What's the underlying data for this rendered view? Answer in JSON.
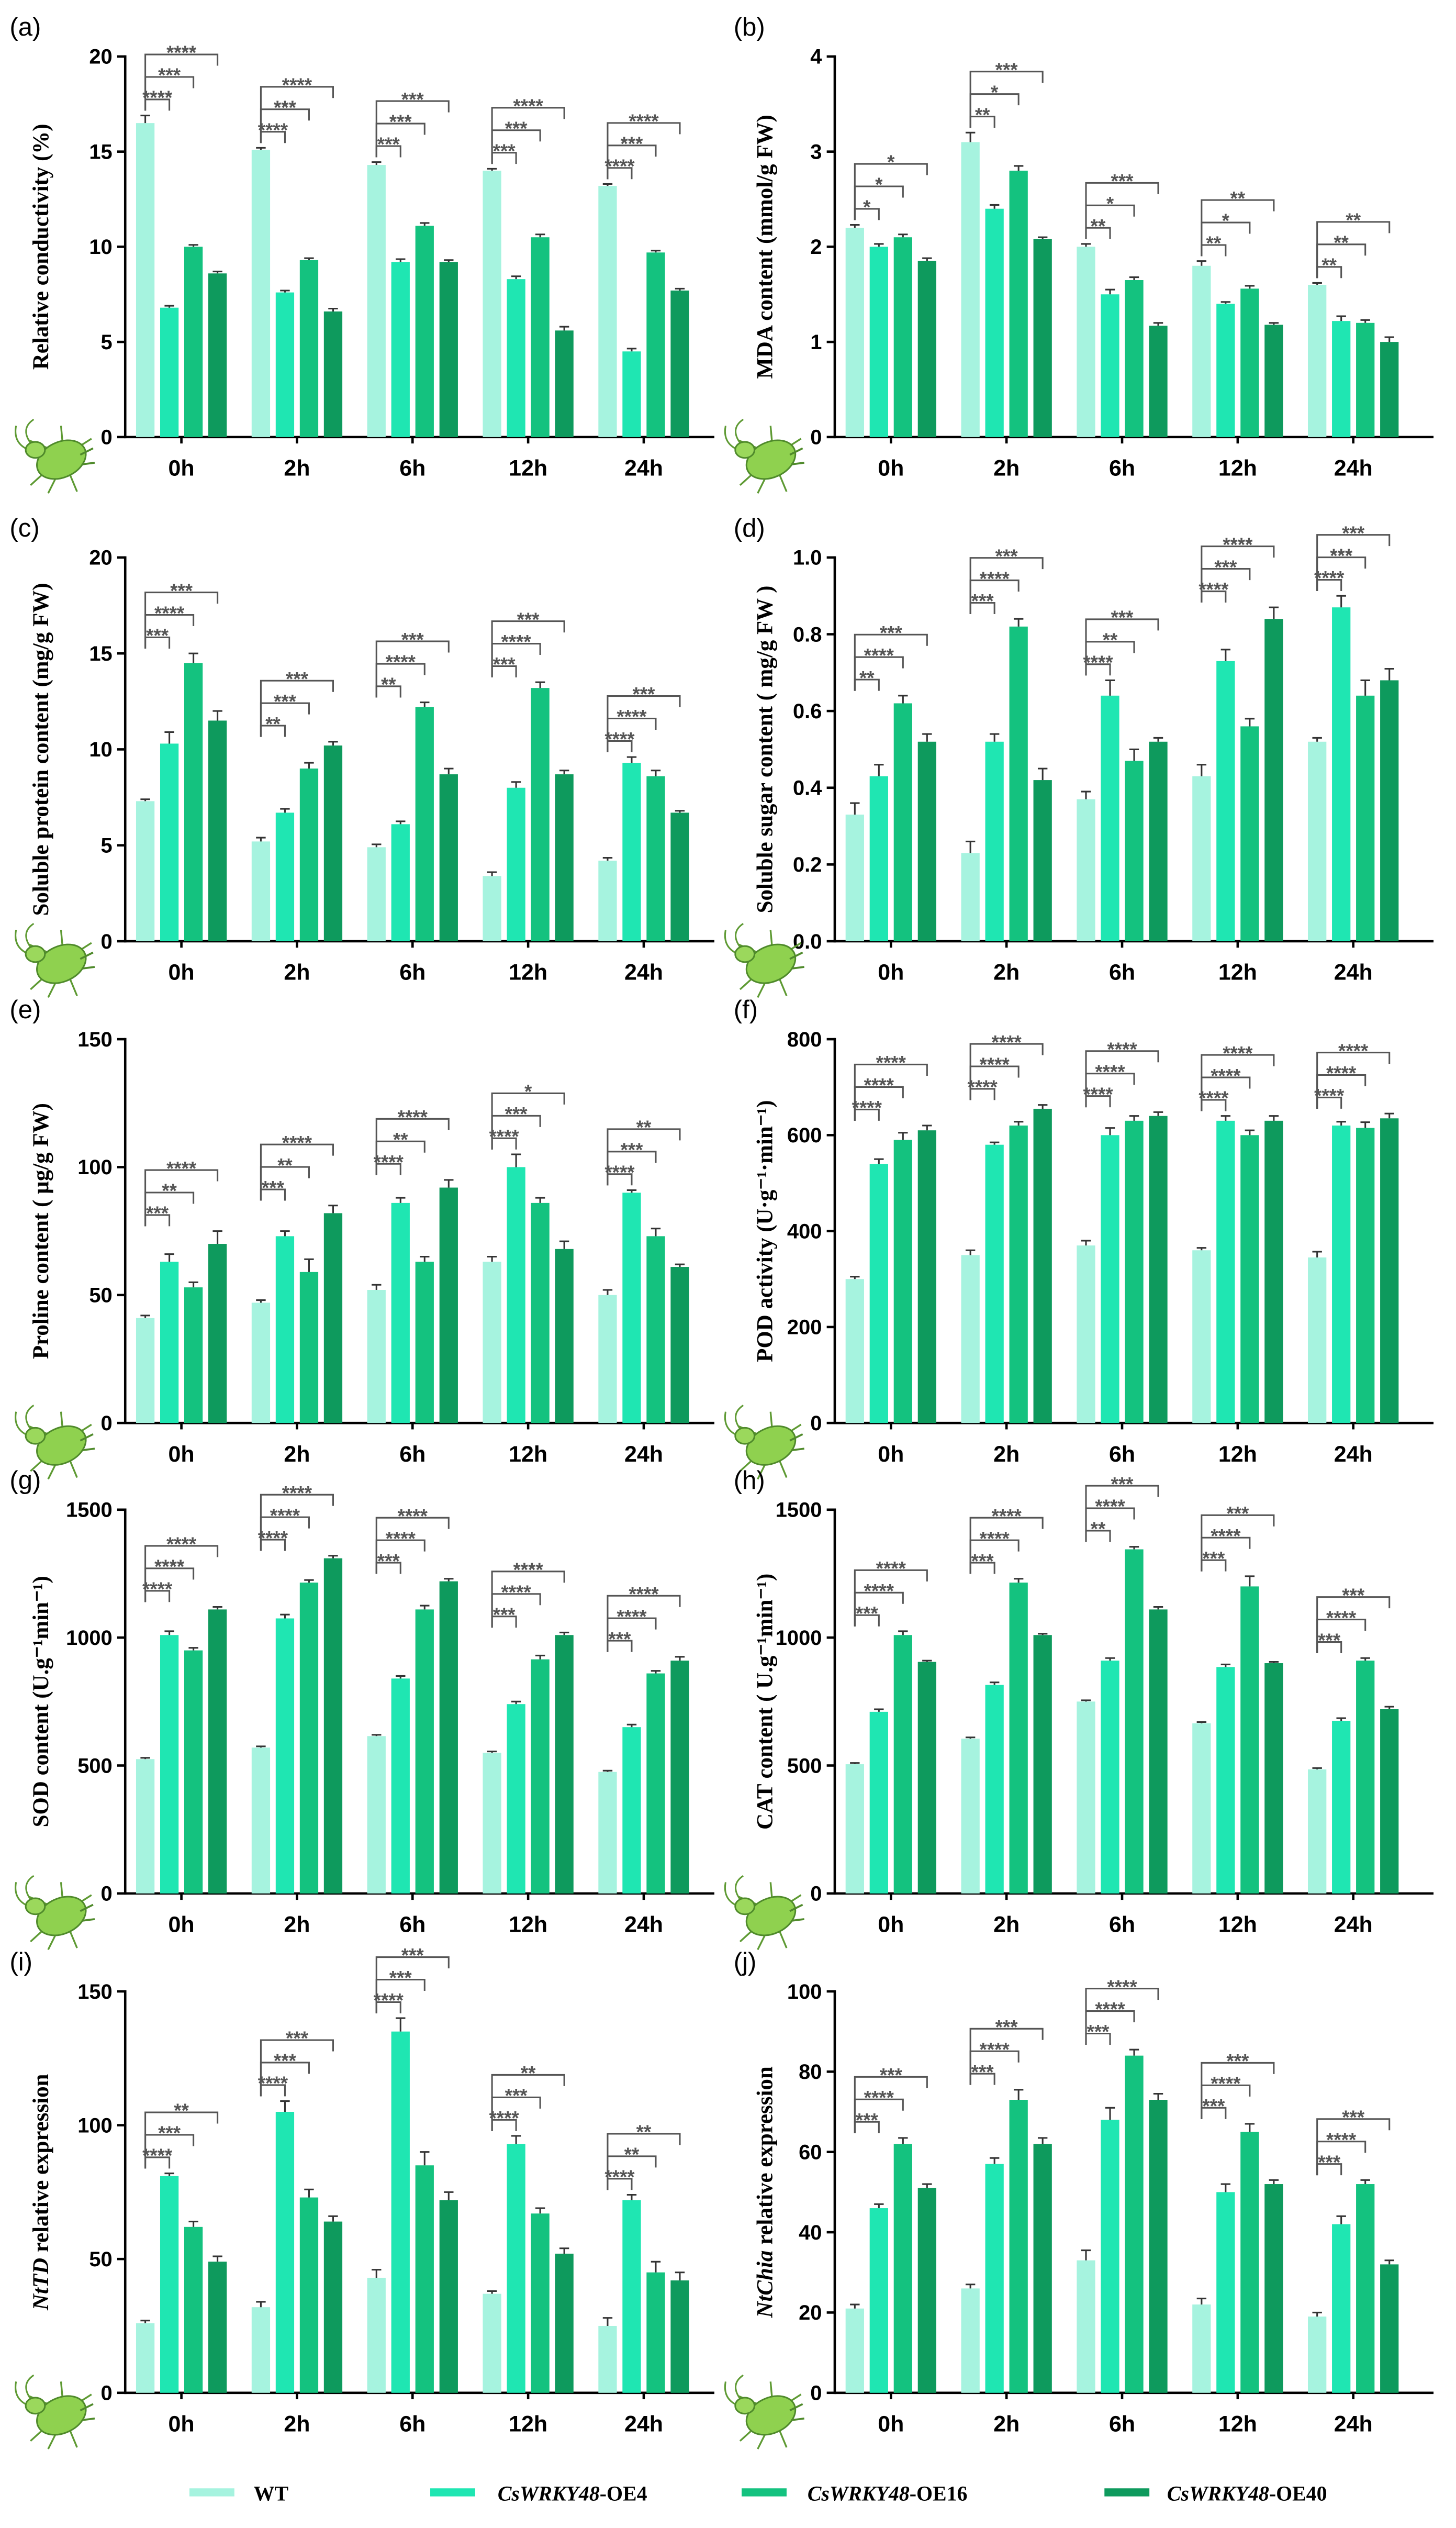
{
  "legend": [
    {
      "parts": [
        {
          "text": "WT",
          "italic": false
        }
      ],
      "color": "#a6f3df"
    },
    {
      "parts": [
        {
          "text": "CsWRKY48",
          "italic": true
        },
        {
          "text": "-OE4",
          "italic": false
        }
      ],
      "color": "#1fe6b2"
    },
    {
      "parts": [
        {
          "text": "CsWRKY48",
          "italic": true
        },
        {
          "text": "-OE16",
          "italic": false
        }
      ],
      "color": "#14c27f"
    },
    {
      "parts": [
        {
          "text": "CsWRKY48",
          "italic": true
        },
        {
          "text": "-OE40",
          "italic": false
        }
      ],
      "color": "#0e9a5d"
    }
  ],
  "chart_data": [
    {
      "panel": "(a)",
      "type": "bar",
      "ylabel": [
        {
          "text": "Relative conductivity (%)",
          "italic": false
        }
      ],
      "ylim": [
        0,
        20
      ],
      "yticks": [
        "0",
        "5",
        "10",
        "15",
        "20"
      ],
      "categories": [
        "0h",
        "2h",
        "6h",
        "12h",
        "24h"
      ],
      "series": [
        {
          "values": [
            16.5,
            15.1,
            14.3,
            14.0,
            13.2
          ],
          "errors": [
            0.4,
            0.1,
            0.15,
            0.1,
            0.1
          ]
        },
        {
          "values": [
            6.8,
            7.6,
            9.2,
            8.3,
            4.5
          ],
          "errors": [
            0.1,
            0.1,
            0.15,
            0.15,
            0.15
          ]
        },
        {
          "values": [
            10.0,
            9.3,
            11.1,
            10.5,
            9.7
          ],
          "errors": [
            0.1,
            0.1,
            0.15,
            0.15,
            0.1
          ]
        },
        {
          "values": [
            8.6,
            6.6,
            9.2,
            5.6,
            7.7
          ],
          "errors": [
            0.1,
            0.15,
            0.1,
            0.2,
            0.1
          ]
        }
      ],
      "significance": [
        [
          "****",
          "***",
          "****"
        ],
        [
          "****",
          "***",
          "****"
        ],
        [
          "***",
          "***",
          "***"
        ],
        [
          "***",
          "***",
          "****"
        ],
        [
          "****",
          "***",
          "****"
        ]
      ]
    },
    {
      "panel": "(b)",
      "type": "bar",
      "ylabel": [
        {
          "text": "MDA content (mmol/g FW)",
          "italic": false
        }
      ],
      "ylim": [
        0,
        4
      ],
      "yticks": [
        "0",
        "1",
        "2",
        "3",
        "4"
      ],
      "categories": [
        "0h",
        "2h",
        "6h",
        "12h",
        "24h"
      ],
      "series": [
        {
          "values": [
            2.2,
            3.1,
            2.0,
            1.8,
            1.6
          ],
          "errors": [
            0.03,
            0.1,
            0.03,
            0.05,
            0.02
          ]
        },
        {
          "values": [
            2.0,
            2.4,
            1.5,
            1.4,
            1.22
          ],
          "errors": [
            0.03,
            0.04,
            0.05,
            0.02,
            0.05
          ]
        },
        {
          "values": [
            2.1,
            2.8,
            1.65,
            1.56,
            1.2
          ],
          "errors": [
            0.03,
            0.05,
            0.03,
            0.03,
            0.03
          ]
        },
        {
          "values": [
            1.85,
            2.08,
            1.17,
            1.18,
            1.0
          ],
          "errors": [
            0.03,
            0.02,
            0.03,
            0.02,
            0.05
          ]
        }
      ],
      "significance": [
        [
          "*",
          "*",
          "*"
        ],
        [
          "**",
          "*",
          "***"
        ],
        [
          "**",
          "*",
          "***"
        ],
        [
          "**",
          "*",
          "**"
        ],
        [
          "**",
          "**",
          "**"
        ]
      ]
    },
    {
      "panel": "(c)",
      "type": "bar",
      "ylabel": [
        {
          "text": "Soluble protein content (mg/g FW)",
          "italic": false
        }
      ],
      "ylim": [
        0,
        20
      ],
      "yticks": [
        "0",
        "5",
        "10",
        "15",
        "20"
      ],
      "categories": [
        "0h",
        "2h",
        "6h",
        "12h",
        "24h"
      ],
      "series": [
        {
          "values": [
            7.3,
            5.2,
            4.9,
            3.4,
            4.2
          ],
          "errors": [
            0.1,
            0.2,
            0.15,
            0.2,
            0.15
          ]
        },
        {
          "values": [
            10.3,
            6.7,
            6.1,
            8.0,
            9.3
          ],
          "errors": [
            0.6,
            0.2,
            0.15,
            0.3,
            0.3
          ]
        },
        {
          "values": [
            14.5,
            9.0,
            12.2,
            13.2,
            8.6
          ],
          "errors": [
            0.5,
            0.3,
            0.25,
            0.3,
            0.3
          ]
        },
        {
          "values": [
            11.5,
            10.2,
            8.7,
            8.7,
            6.7
          ],
          "errors": [
            0.5,
            0.2,
            0.3,
            0.2,
            0.1
          ]
        }
      ],
      "significance": [
        [
          "***",
          "****",
          "***"
        ],
        [
          "**",
          "***",
          "***"
        ],
        [
          "**",
          "****",
          "***"
        ],
        [
          "***",
          "****",
          "***"
        ],
        [
          "****",
          "****",
          "***"
        ]
      ]
    },
    {
      "panel": "(d)",
      "type": "bar",
      "ylabel": [
        {
          "text": "Soluble sugar content ( mg/g FW )",
          "italic": false
        }
      ],
      "ylim": [
        0,
        1.0
      ],
      "yticks": [
        "0.0",
        "0.2",
        "0.4",
        "0.6",
        "0.8",
        "1.0"
      ],
      "categories": [
        "0h",
        "2h",
        "6h",
        "12h",
        "24h"
      ],
      "series": [
        {
          "values": [
            0.33,
            0.23,
            0.37,
            0.43,
            0.52
          ],
          "errors": [
            0.03,
            0.03,
            0.02,
            0.03,
            0.01
          ]
        },
        {
          "values": [
            0.43,
            0.52,
            0.64,
            0.73,
            0.87
          ],
          "errors": [
            0.03,
            0.02,
            0.04,
            0.03,
            0.03
          ]
        },
        {
          "values": [
            0.62,
            0.82,
            0.47,
            0.56,
            0.64
          ],
          "errors": [
            0.02,
            0.02,
            0.03,
            0.02,
            0.04
          ]
        },
        {
          "values": [
            0.52,
            0.42,
            0.52,
            0.84,
            0.68
          ],
          "errors": [
            0.02,
            0.03,
            0.01,
            0.03,
            0.03
          ]
        }
      ],
      "significance": [
        [
          "**",
          "****",
          "***"
        ],
        [
          "***",
          "****",
          "***"
        ],
        [
          "****",
          "**",
          "***"
        ],
        [
          "****",
          "***",
          "****"
        ],
        [
          "****",
          "***",
          "***"
        ]
      ]
    },
    {
      "panel": "(e)",
      "type": "bar",
      "ylabel": [
        {
          "text": "Proline content ( µg/g FW)",
          "italic": false
        }
      ],
      "ylim": [
        0,
        150
      ],
      "yticks": [
        "0",
        "50",
        "100",
        "150"
      ],
      "categories": [
        "0h",
        "2h",
        "6h",
        "12h",
        "24h"
      ],
      "series": [
        {
          "values": [
            41,
            47,
            52,
            63,
            50
          ],
          "errors": [
            1,
            1,
            2,
            2,
            2
          ]
        },
        {
          "values": [
            63,
            73,
            86,
            100,
            90
          ],
          "errors": [
            3,
            2,
            2,
            5,
            1
          ]
        },
        {
          "values": [
            53,
            59,
            63,
            86,
            73
          ],
          "errors": [
            2,
            5,
            2,
            2,
            3
          ]
        },
        {
          "values": [
            70,
            82,
            92,
            68,
            61
          ],
          "errors": [
            5,
            3,
            3,
            3,
            1
          ]
        }
      ],
      "significance": [
        [
          "***",
          "**",
          "****"
        ],
        [
          "***",
          "**",
          "****"
        ],
        [
          "****",
          "**",
          "****"
        ],
        [
          "****",
          "***",
          "*"
        ],
        [
          "****",
          "***",
          "**"
        ]
      ]
    },
    {
      "panel": "(f)",
      "type": "bar",
      "ylabel": [
        {
          "text": "POD activity (U·g⁻¹·min⁻¹)",
          "italic": false
        }
      ],
      "ylim": [
        0,
        800
      ],
      "yticks": [
        "0",
        "200",
        "400",
        "600",
        "800"
      ],
      "categories": [
        "0h",
        "2h",
        "6h",
        "12h",
        "24h"
      ],
      "series": [
        {
          "values": [
            300,
            350,
            370,
            360,
            345
          ],
          "errors": [
            5,
            10,
            10,
            5,
            12
          ]
        },
        {
          "values": [
            540,
            580,
            600,
            630,
            620
          ],
          "errors": [
            10,
            5,
            15,
            10,
            8
          ]
        },
        {
          "values": [
            590,
            620,
            630,
            600,
            615
          ],
          "errors": [
            15,
            8,
            10,
            10,
            12
          ]
        },
        {
          "values": [
            610,
            655,
            640,
            630,
            635
          ],
          "errors": [
            10,
            8,
            8,
            10,
            10
          ]
        }
      ],
      "significance": [
        [
          "****",
          "****",
          "****"
        ],
        [
          "****",
          "****",
          "****"
        ],
        [
          "****",
          "****",
          "****"
        ],
        [
          "****",
          "****",
          "****"
        ],
        [
          "****",
          "****",
          "****"
        ]
      ]
    },
    {
      "panel": "(g)",
      "type": "bar",
      "ylabel": [
        {
          "text": "SOD content (U.g⁻¹min⁻¹)",
          "italic": false
        }
      ],
      "ylim": [
        0,
        1500
      ],
      "yticks": [
        "0",
        "500",
        "1000",
        "1500"
      ],
      "categories": [
        "0h",
        "2h",
        "6h",
        "12h",
        "24h"
      ],
      "series": [
        {
          "values": [
            525,
            570,
            615,
            550,
            475
          ],
          "errors": [
            5,
            5,
            5,
            5,
            5
          ]
        },
        {
          "values": [
            1010,
            1075,
            840,
            740,
            650
          ],
          "errors": [
            15,
            15,
            10,
            10,
            10
          ]
        },
        {
          "values": [
            950,
            1215,
            1110,
            915,
            860
          ],
          "errors": [
            10,
            10,
            15,
            15,
            10
          ]
        },
        {
          "values": [
            1110,
            1310,
            1220,
            1010,
            910
          ],
          "errors": [
            10,
            10,
            10,
            10,
            15
          ]
        }
      ],
      "significance": [
        [
          "****",
          "****",
          "****"
        ],
        [
          "****",
          "****",
          "****"
        ],
        [
          "***",
          "****",
          "****"
        ],
        [
          "***",
          "****",
          "****"
        ],
        [
          "***",
          "****",
          "****"
        ]
      ]
    },
    {
      "panel": "(h)",
      "type": "bar",
      "ylabel": [
        {
          "text": "CAT content ( U.g⁻¹min⁻¹)",
          "italic": false
        }
      ],
      "ylim": [
        0,
        1500
      ],
      "yticks": [
        "0",
        "500",
        "1000",
        "1500"
      ],
      "categories": [
        "0h",
        "2h",
        "6h",
        "12h",
        "24h"
      ],
      "series": [
        {
          "values": [
            505,
            605,
            750,
            665,
            485
          ],
          "errors": [
            5,
            5,
            5,
            5,
            5
          ]
        },
        {
          "values": [
            710,
            815,
            910,
            885,
            675
          ],
          "errors": [
            10,
            10,
            10,
            10,
            10
          ]
        },
        {
          "values": [
            1010,
            1215,
            1345,
            1200,
            910
          ],
          "errors": [
            15,
            15,
            10,
            40,
            10
          ]
        },
        {
          "values": [
            905,
            1010,
            1110,
            900,
            720
          ],
          "errors": [
            5,
            5,
            10,
            5,
            10
          ]
        }
      ],
      "significance": [
        [
          "***",
          "****",
          "****"
        ],
        [
          "***",
          "****",
          "****"
        ],
        [
          "**",
          "****",
          "***"
        ],
        [
          "***",
          "****",
          "***"
        ],
        [
          "***",
          "****",
          "***"
        ]
      ]
    },
    {
      "panel": "(i)",
      "type": "bar",
      "ylabel": [
        {
          "text": "NtTD",
          "italic": true
        },
        {
          "text": " relative expression",
          "italic": false
        }
      ],
      "ylim": [
        0,
        150
      ],
      "yticks": [
        "0",
        "50",
        "100",
        "150"
      ],
      "categories": [
        "0h",
        "2h",
        "6h",
        "12h",
        "24h"
      ],
      "series": [
        {
          "values": [
            26,
            32,
            43,
            37,
            25
          ],
          "errors": [
            1,
            2,
            3,
            1,
            3
          ]
        },
        {
          "values": [
            81,
            105,
            135,
            93,
            72
          ],
          "errors": [
            1,
            4,
            5,
            3,
            2
          ]
        },
        {
          "values": [
            62,
            73,
            85,
            67,
            45
          ],
          "errors": [
            2,
            3,
            5,
            2,
            4
          ]
        },
        {
          "values": [
            49,
            64,
            72,
            52,
            42
          ],
          "errors": [
            2,
            2,
            3,
            2,
            3
          ]
        }
      ],
      "significance": [
        [
          "****",
          "***",
          "**"
        ],
        [
          "****",
          "***",
          "***"
        ],
        [
          "****",
          "***",
          "***"
        ],
        [
          "****",
          "***",
          "**"
        ],
        [
          "****",
          "**",
          "**"
        ]
      ]
    },
    {
      "panel": "(j)",
      "type": "bar",
      "ylabel": [
        {
          "text": "NtChia",
          "italic": true
        },
        {
          "text": " relative expression",
          "italic": false
        }
      ],
      "ylim": [
        0,
        100
      ],
      "yticks": [
        "0",
        "20",
        "40",
        "60",
        "80",
        "100"
      ],
      "categories": [
        "0h",
        "2h",
        "6h",
        "12h",
        "24h"
      ],
      "series": [
        {
          "values": [
            21,
            26,
            33,
            22,
            19
          ],
          "errors": [
            1,
            1,
            2.5,
            1.5,
            1
          ]
        },
        {
          "values": [
            46,
            57,
            68,
            50,
            42
          ],
          "errors": [
            1,
            1.5,
            3,
            2,
            2
          ]
        },
        {
          "values": [
            62,
            73,
            84,
            65,
            52
          ],
          "errors": [
            1.5,
            2.5,
            1.5,
            2,
            1
          ]
        },
        {
          "values": [
            51,
            62,
            73,
            52,
            32
          ],
          "errors": [
            1,
            1.5,
            1.5,
            1,
            1
          ]
        }
      ],
      "significance": [
        [
          "***",
          "****",
          "***"
        ],
        [
          "***",
          "****",
          "***"
        ],
        [
          "***",
          "****",
          "****"
        ],
        [
          "***",
          "****",
          "***"
        ],
        [
          "***",
          "****",
          "***"
        ]
      ]
    }
  ]
}
